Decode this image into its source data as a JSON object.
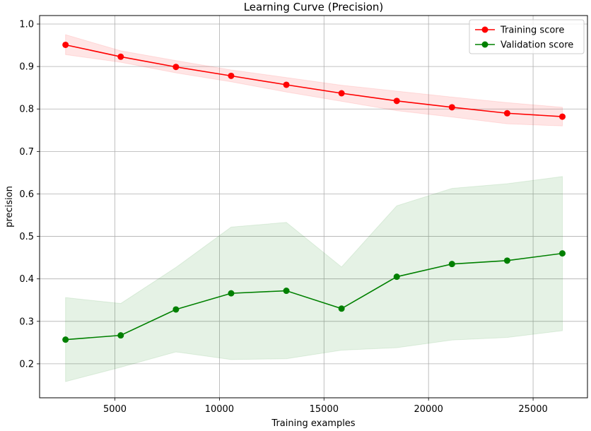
{
  "chart_data": {
    "type": "line",
    "title": "Learning Curve (Precision)",
    "xlabel": "Training examples",
    "ylabel": "precision",
    "xlim": [
      1400,
      27600
    ],
    "ylim": [
      0.12,
      1.02
    ],
    "xticks": [
      5000,
      10000,
      15000,
      20000,
      25000
    ],
    "yticks": [
      0.2,
      0.3,
      0.4,
      0.5,
      0.6,
      0.7,
      0.8,
      0.9,
      1.0
    ],
    "grid": true,
    "legend_position": "top-right",
    "x": [
      2640,
      5280,
      7920,
      10560,
      13200,
      15840,
      18480,
      21120,
      23760,
      26400
    ],
    "series": [
      {
        "name": "Training score",
        "color": "#ff0000",
        "band_color": "#ff0000",
        "values": [
          0.951,
          0.923,
          0.899,
          0.878,
          0.857,
          0.837,
          0.819,
          0.804,
          0.79,
          0.782
        ],
        "band_upper": [
          0.975,
          0.937,
          0.914,
          0.892,
          0.874,
          0.856,
          0.842,
          0.828,
          0.815,
          0.804
        ],
        "band_lower": [
          0.928,
          0.91,
          0.885,
          0.864,
          0.84,
          0.818,
          0.796,
          0.781,
          0.765,
          0.76
        ]
      },
      {
        "name": "Validation score",
        "color": "#008000",
        "band_color": "#008000",
        "values": [
          0.257,
          0.267,
          0.328,
          0.366,
          0.372,
          0.33,
          0.405,
          0.435,
          0.443,
          0.46
        ],
        "band_upper": [
          0.356,
          0.342,
          0.427,
          0.522,
          0.533,
          0.428,
          0.572,
          0.613,
          0.624,
          0.641
        ],
        "band_lower": [
          0.158,
          0.192,
          0.228,
          0.21,
          0.212,
          0.232,
          0.238,
          0.256,
          0.262,
          0.278
        ]
      }
    ]
  }
}
